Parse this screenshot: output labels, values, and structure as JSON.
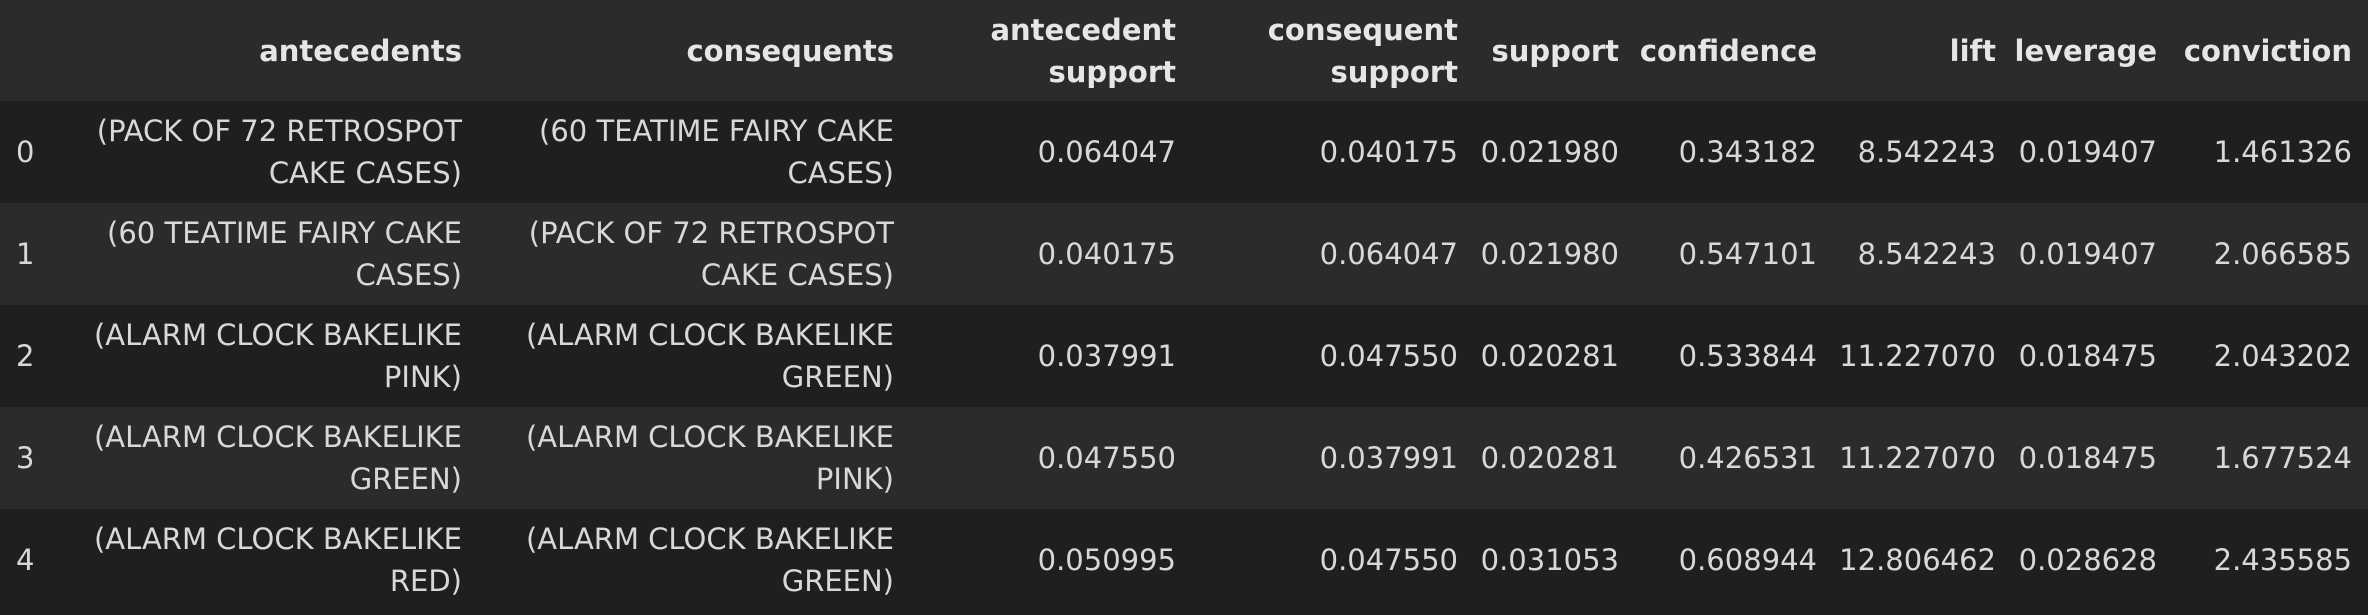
{
  "table": {
    "columns": [
      "antecedents",
      "consequents",
      "antecedent support",
      "consequent support",
      "support",
      "confidence",
      "lift",
      "leverage",
      "conviction"
    ],
    "rows": [
      {
        "index": "0",
        "antecedents": "(PACK OF 72 RETROSPOT CAKE CASES)",
        "consequents": "(60 TEATIME FAIRY CAKE CASES)",
        "antecedent_support": "0.064047",
        "consequent_support": "0.040175",
        "support": "0.021980",
        "confidence": "0.343182",
        "lift": "8.542243",
        "leverage": "0.019407",
        "conviction": "1.461326"
      },
      {
        "index": "1",
        "antecedents": "(60 TEATIME FAIRY CAKE CASES)",
        "consequents": "(PACK OF 72 RETROSPOT CAKE CASES)",
        "antecedent_support": "0.040175",
        "consequent_support": "0.064047",
        "support": "0.021980",
        "confidence": "0.547101",
        "lift": "8.542243",
        "leverage": "0.019407",
        "conviction": "2.066585"
      },
      {
        "index": "2",
        "antecedents": "(ALARM CLOCK BAKELIKE PINK)",
        "consequents": "(ALARM CLOCK BAKELIKE GREEN)",
        "antecedent_support": "0.037991",
        "consequent_support": "0.047550",
        "support": "0.020281",
        "confidence": "0.533844",
        "lift": "11.227070",
        "leverage": "0.018475",
        "conviction": "2.043202"
      },
      {
        "index": "3",
        "antecedents": "(ALARM CLOCK BAKELIKE GREEN)",
        "consequents": "(ALARM CLOCK BAKELIKE PINK)",
        "antecedent_support": "0.047550",
        "consequent_support": "0.037991",
        "support": "0.020281",
        "confidence": "0.426531",
        "lift": "11.227070",
        "leverage": "0.018475",
        "conviction": "1.677524"
      },
      {
        "index": "4",
        "antecedents": "(ALARM CLOCK BAKELIKE RED)",
        "consequents": "(ALARM CLOCK BAKELIKE GREEN)",
        "antecedent_support": "0.050995",
        "consequent_support": "0.047550",
        "support": "0.031053",
        "confidence": "0.608944",
        "lift": "12.806462",
        "leverage": "0.028628",
        "conviction": "2.435585"
      }
    ]
  },
  "colors": {
    "background": "#1f1f1f",
    "header_background": "#2b2b2b",
    "stripe_background": "#2b2b2b",
    "text": "#d8d8d8"
  }
}
